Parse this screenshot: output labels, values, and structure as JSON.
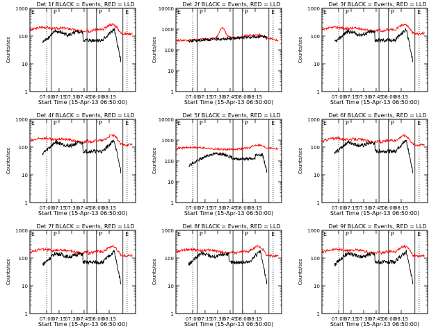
{
  "chart_data": [
    {
      "type": "line",
      "title": "Det 1f BLACK = Events, RED = LLD",
      "ylabel": "Counts/sec",
      "xlabel": "Start Time (15-Apr-13 06:50:00)",
      "xticks": [
        "07:00",
        "07:15",
        "07:30",
        "07:45",
        "08:00",
        "08:15"
      ],
      "yticks": [
        "1",
        "10",
        "100",
        "1000"
      ],
      "ylim": [
        1,
        1000
      ],
      "yscale": "log",
      "markers": [
        "E",
        "P",
        "P",
        "E"
      ],
      "series": [
        {
          "color": "#ff0000",
          "shape": "red1"
        },
        {
          "color": "#000000",
          "shape": "black1"
        }
      ]
    },
    {
      "type": "line",
      "title": "Det 2f BLACK = Events, RED = LLD",
      "ylabel": "Counts/sec",
      "xlabel": "Start Time (15-Apr-13 06:50:00)",
      "xticks": [
        "07:00",
        "07:15",
        "07:30",
        "07:45",
        "08:00",
        "08:15"
      ],
      "yticks": [
        "1",
        "10",
        "100",
        "1000",
        "10000"
      ],
      "ylim": [
        1,
        10000
      ],
      "yscale": "log",
      "markers": [
        "E",
        "P",
        "P",
        "E"
      ],
      "series": [
        {
          "color": "#ff0000",
          "shape": "red2"
        },
        {
          "color": "#000000",
          "shape": "black2"
        }
      ]
    },
    {
      "type": "line",
      "title": "Det 3f BLACK = Events, RED = LLD",
      "ylabel": "Counts/sec",
      "xlabel": "Start Time (15-Apr-13 06:50:00)",
      "xticks": [
        "07:00",
        "07:15",
        "07:30",
        "07:45",
        "08:00",
        "08:15"
      ],
      "yticks": [
        "1",
        "10",
        "100",
        "1000"
      ],
      "ylim": [
        1,
        1000
      ],
      "yscale": "log",
      "markers": [
        "E",
        "P",
        "P",
        "E"
      ],
      "series": [
        {
          "color": "#ff0000",
          "shape": "red1"
        },
        {
          "color": "#000000",
          "shape": "black1"
        }
      ]
    },
    {
      "type": "line",
      "title": "Det 4f BLACK = Events, RED = LLD",
      "ylabel": "Counts/sec",
      "xlabel": "Start Time (15-Apr-13 06:50:00)",
      "xticks": [
        "07:00",
        "07:15",
        "07:30",
        "07:45",
        "08:00",
        "08:15"
      ],
      "yticks": [
        "1",
        "10",
        "100",
        "1000"
      ],
      "ylim": [
        1,
        1000
      ],
      "yscale": "log",
      "markers": [
        "E",
        "P",
        "P",
        "E"
      ],
      "series": [
        {
          "color": "#ff0000",
          "shape": "red1"
        },
        {
          "color": "#000000",
          "shape": "black1"
        }
      ]
    },
    {
      "type": "line",
      "title": "Det 5f BLACK = Events, RED = LLD",
      "ylabel": "Counts/sec",
      "xlabel": "Start Time (15-Apr-13 06:50:00)",
      "xticks": [
        "07:00",
        "07:15",
        "07:30",
        "07:45",
        "08:00",
        "08:15"
      ],
      "yticks": [
        "1",
        "10",
        "100",
        "1000",
        "10000"
      ],
      "ylim": [
        1,
        10000
      ],
      "yscale": "log",
      "markers": [
        "E",
        "P",
        "P",
        "E"
      ],
      "series": [
        {
          "color": "#ff0000",
          "shape": "red5"
        },
        {
          "color": "#000000",
          "shape": "black5"
        }
      ]
    },
    {
      "type": "line",
      "title": "Det 6f BLACK = Events, RED = LLD",
      "ylabel": "Counts/sec",
      "xlabel": "Start Time (15-Apr-13 06:50:00)",
      "xticks": [
        "07:00",
        "07:15",
        "07:30",
        "07:45",
        "08:00",
        "08:15"
      ],
      "yticks": [
        "1",
        "10",
        "100",
        "1000"
      ],
      "ylim": [
        1,
        1000
      ],
      "yscale": "log",
      "markers": [
        "E",
        "P",
        "P",
        "E"
      ],
      "series": [
        {
          "color": "#ff0000",
          "shape": "red1"
        },
        {
          "color": "#000000",
          "shape": "black1"
        }
      ]
    },
    {
      "type": "line",
      "title": "Det 7f BLACK = Events, RED = LLD",
      "ylabel": "Counts/sec",
      "xlabel": "Start Time (15-Apr-13 06:50:00)",
      "xticks": [
        "07:00",
        "07:15",
        "07:30",
        "07:45",
        "08:00",
        "08:15"
      ],
      "yticks": [
        "1",
        "10",
        "100",
        "1000"
      ],
      "ylim": [
        1,
        1000
      ],
      "yscale": "log",
      "markers": [
        "E",
        "P",
        "P",
        "E"
      ],
      "series": [
        {
          "color": "#ff0000",
          "shape": "red1"
        },
        {
          "color": "#000000",
          "shape": "black1"
        }
      ]
    },
    {
      "type": "line",
      "title": "Det 8f BLACK = Events, RED = LLD",
      "ylabel": "Counts/sec",
      "xlabel": "Start Time (15-Apr-13 06:50:00)",
      "xticks": [
        "07:00",
        "07:15",
        "07:30",
        "07:45",
        "08:00",
        "08:15"
      ],
      "yticks": [
        "1",
        "10",
        "100",
        "1000"
      ],
      "ylim": [
        1,
        1000
      ],
      "yscale": "log",
      "markers": [
        "E",
        "P",
        "P",
        "E"
      ],
      "series": [
        {
          "color": "#ff0000",
          "shape": "red1"
        },
        {
          "color": "#000000",
          "shape": "black1"
        }
      ]
    },
    {
      "type": "line",
      "title": "Det 9f BLACK = Events, RED = LLD",
      "ylabel": "Counts/sec",
      "xlabel": "Start Time (15-Apr-13 06:50:00)",
      "xticks": [
        "07:00",
        "07:15",
        "07:30",
        "07:45",
        "08:00",
        "08:15"
      ],
      "yticks": [
        "1",
        "10",
        "100",
        "1000"
      ],
      "ylim": [
        1,
        1000
      ],
      "yscale": "log",
      "markers": [
        "E",
        "P",
        "P",
        "E"
      ],
      "series": [
        {
          "color": "#ff0000",
          "shape": "red1"
        },
        {
          "color": "#000000",
          "shape": "black1"
        }
      ]
    }
  ]
}
